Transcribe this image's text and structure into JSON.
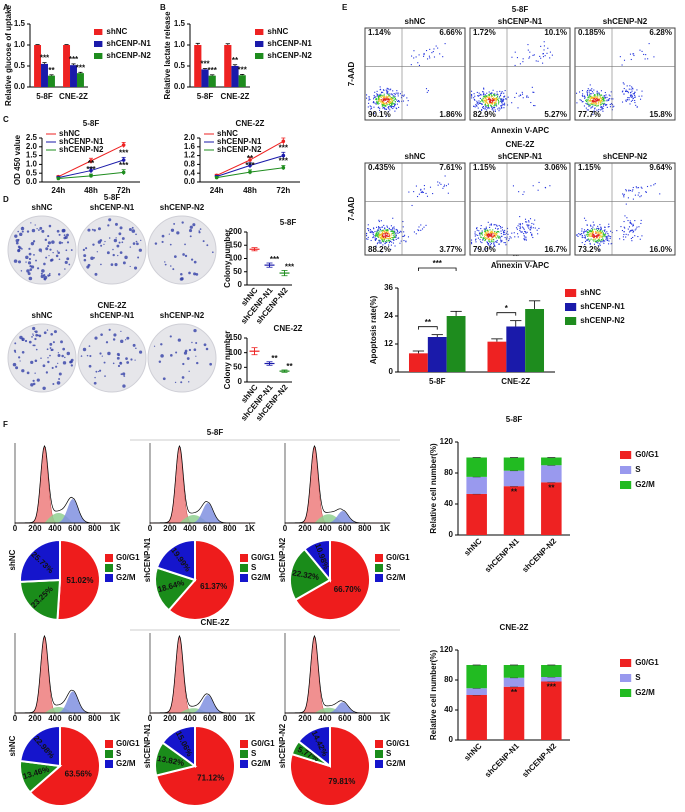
{
  "panel_labels": [
    "A",
    "B",
    "C",
    "D",
    "E",
    "F"
  ],
  "chart_data": [
    {
      "type": "bar",
      "y_label": "Relative glucose of uptake",
      "categories": [
        "5-8F",
        "CNE-2Z"
      ],
      "ylim": [
        0,
        1.5
      ],
      "yticks": [
        {
          "value": 0,
          "label": "0.0"
        },
        0.5,
        {
          "value": 1,
          "label": "1.0"
        },
        1.5
      ],
      "series": [
        {
          "name": "shNC",
          "color": "#ee2222",
          "values": [
            1,
            1
          ],
          "errors": [
            0.01,
            0.01
          ]
        },
        {
          "name": "shCENP-N1",
          "color": "#1a1aaa",
          "values": [
            0.55,
            0.52
          ],
          "errors": [
            0.03,
            0.03
          ],
          "sig": [
            "***",
            "***"
          ]
        },
        {
          "name": "shCENP-N2",
          "color": "#1e8c1e",
          "values": [
            0.27,
            0.33
          ],
          "errors": [
            0.02,
            0.02
          ],
          "sig": [
            "**",
            "***"
          ]
        }
      ]
    },
    {
      "type": "bar",
      "y_label": "Relative lactate release",
      "categories": [
        "5-8F",
        "CNE-2Z"
      ],
      "ylim": [
        0,
        1.5
      ],
      "yticks": [
        {
          "value": 0,
          "label": "0.0"
        },
        0.5,
        {
          "value": 1,
          "label": "1.0"
        },
        1.5
      ],
      "series": [
        {
          "name": "shNC",
          "color": "#ee2222",
          "values": [
            1,
            1
          ],
          "errors": [
            0.04,
            0.03
          ]
        },
        {
          "name": "shCENP-N1",
          "color": "#1a1aaa",
          "values": [
            0.42,
            0.5
          ],
          "errors": [
            0.02,
            0.03
          ],
          "sig": [
            "***",
            "**"
          ]
        },
        {
          "name": "shCENP-N2",
          "color": "#1e8c1e",
          "values": [
            0.27,
            0.28
          ],
          "errors": [
            0.02,
            0.02
          ],
          "sig": [
            "***",
            "***"
          ]
        }
      ]
    },
    {
      "type": "line",
      "title": "5-8F",
      "y_label": "OD 450 value",
      "categories": [
        "24h",
        "48h",
        "72h"
      ],
      "ylim": [
        0,
        2.5
      ],
      "yticks": [
        {
          "value": 0,
          "label": "0.0"
        },
        0.5,
        {
          "value": 1,
          "label": "1.0"
        },
        1.5,
        {
          "value": 2,
          "label": "2.0"
        },
        2.5
      ],
      "series": [
        {
          "name": "shNC",
          "color": "#ee2222",
          "values": [
            0.3,
            1.2,
            2.1
          ],
          "errors": [
            0.05,
            0.15,
            0.15
          ]
        },
        {
          "name": "shCENP-N1",
          "color": "#1a1aaa",
          "values": [
            0.25,
            0.65,
            1.25
          ],
          "errors": [
            0.05,
            0.15,
            0.15
          ],
          "sig": [
            null,
            "**",
            "***"
          ]
        },
        {
          "name": "shCENP-N2",
          "color": "#1e8c1e",
          "values": [
            0.2,
            0.35,
            0.55
          ],
          "errors": [
            0.05,
            0.1,
            0.15
          ],
          "sig": [
            null,
            "***",
            "***"
          ]
        }
      ]
    },
    {
      "type": "line",
      "title": "CNE-2Z",
      "categories": [
        "24h",
        "48h",
        "72h"
      ],
      "ylim": [
        0,
        2
      ],
      "yticks": [
        {
          "value": 0,
          "label": "0.0"
        },
        0.4,
        0.8,
        1.2,
        1.6,
        {
          "value": 2,
          "label": "2.0"
        }
      ],
      "series": [
        {
          "name": "shNC",
          "color": "#ee2222",
          "values": [
            0.3,
            1.0,
            1.85
          ],
          "errors": [
            0.05,
            0.12,
            0.15
          ]
        },
        {
          "name": "shCENP-N1",
          "color": "#1a1aaa",
          "values": [
            0.25,
            0.75,
            1.2
          ],
          "errors": [
            0.05,
            0.12,
            0.15
          ],
          "sig": [
            null,
            "**",
            "***"
          ]
        },
        {
          "name": "shCENP-N2",
          "color": "#1e8c1e",
          "values": [
            0.2,
            0.45,
            0.65
          ],
          "errors": [
            0.05,
            0.1,
            0.1
          ],
          "sig": [
            null,
            "***",
            "***"
          ]
        }
      ]
    },
    {
      "type": "dot",
      "title": "5-8F",
      "y_label": "Colony number",
      "categories": [
        "shNC",
        "shCENP-N1",
        "shCENP-N2"
      ],
      "values": [
        135,
        75,
        45
      ],
      "errors": [
        6,
        8,
        10
      ],
      "colors": [
        "#ee2222",
        "#1a1aaa",
        "#1e8c1e"
      ],
      "sig": [
        null,
        "***",
        "***"
      ],
      "ylim": [
        0,
        200
      ],
      "yticks": [
        0,
        50,
        100,
        150,
        200
      ]
    },
    {
      "type": "dot",
      "title": "CNE-2Z",
      "y_label": "Colony number",
      "categories": [
        "shNC",
        "shCENP-N1",
        "shCENP-N2"
      ],
      "values": [
        105,
        63,
        37
      ],
      "errors": [
        12,
        6,
        4
      ],
      "colors": [
        "#ee2222",
        "#1a1aaa",
        "#1e8c1e"
      ],
      "sig": [
        null,
        "**",
        "**"
      ],
      "ylim": [
        0,
        150
      ],
      "yticks": [
        0,
        50,
        100,
        150
      ]
    },
    {
      "type": "bar",
      "y_label": "Apoptosis rate(%)",
      "categories": [
        "5-8F",
        "CNE-2Z"
      ],
      "ylim": [
        0,
        36
      ],
      "yticks": [
        0,
        12,
        24,
        36
      ],
      "annotations": [
        "**",
        "***",
        "*",
        "**"
      ],
      "series": [
        {
          "name": "shNC",
          "color": "#ee2222",
          "values": [
            8,
            13
          ],
          "errors": [
            1,
            1.2
          ]
        },
        {
          "name": "shCENP-N1",
          "color": "#1a1aaa",
          "values": [
            15,
            19.5
          ],
          "errors": [
            1,
            2.5
          ]
        },
        {
          "name": "shCENP-N2",
          "color": "#1e8c1e",
          "values": [
            24,
            27
          ],
          "errors": [
            2,
            3.5
          ]
        }
      ]
    },
    {
      "type": "pie",
      "title": "shNC",
      "categories": [
        "G0/G1",
        "S",
        "G2/M"
      ],
      "colors": [
        "#ee1c1c",
        "#1a8c1a",
        "#1515cc"
      ],
      "values": [
        51.02,
        23.25,
        25.73
      ],
      "value_labels": [
        "51.02%",
        "23.25%",
        "25.73%"
      ]
    },
    {
      "type": "pie",
      "title": "shCENP-N1",
      "categories": [
        "G0/G1",
        "S",
        "G2/M"
      ],
      "colors": [
        "#ee1c1c",
        "#1a8c1a",
        "#1515cc"
      ],
      "values": [
        61.37,
        18.64,
        19.99
      ],
      "value_labels": [
        "61.37%",
        "18.64%",
        "19.99%"
      ]
    },
    {
      "type": "pie",
      "title": "shCENP-N2",
      "categories": [
        "G0/G1",
        "S",
        "G2/M"
      ],
      "colors": [
        "#ee1c1c",
        "#1a8c1a",
        "#1515cc"
      ],
      "values": [
        66.7,
        22.32,
        10.98
      ],
      "value_labels": [
        "66.70%",
        "22.32%",
        "10.98%"
      ]
    },
    {
      "type": "pie",
      "title": "shNC",
      "categories": [
        "G0/G1",
        "S",
        "G2/M"
      ],
      "colors": [
        "#ee1c1c",
        "#1a8c1a",
        "#1515cc"
      ],
      "values": [
        63.56,
        13.46,
        22.98
      ],
      "value_labels": [
        "63.56%",
        "13.46%",
        "22.98%"
      ]
    },
    {
      "type": "pie",
      "title": "shCENP-N1",
      "categories": [
        "G0/G1",
        "S",
        "G2/M"
      ],
      "colors": [
        "#ee1c1c",
        "#1a8c1a",
        "#1515cc"
      ],
      "values": [
        71.12,
        13.82,
        15.06
      ],
      "value_labels": [
        "71.12%",
        "13.82%",
        "15.06%"
      ]
    },
    {
      "type": "pie",
      "title": "shCENP-N2",
      "categories": [
        "G0/G1",
        "S",
        "G2/M"
      ],
      "colors": [
        "#ee1c1c",
        "#1a8c1a",
        "#1515cc"
      ],
      "values": [
        79.81,
        5.77,
        14.42
      ],
      "value_labels": [
        "79.81%",
        "5.77%",
        "14.42%"
      ]
    },
    {
      "type": "stacked_bar",
      "title": "5-8F",
      "y_label": "Relative cell number(%)",
      "categories": [
        "shNC",
        "shCENP-N1",
        "shCENP-N2"
      ],
      "ylim": [
        0,
        120
      ],
      "yticks": [
        0,
        40,
        80,
        120
      ],
      "series": [
        {
          "name": "G0/G1",
          "color": "#ee2222",
          "values": [
            53,
            63,
            68
          ],
          "sig": [
            null,
            "**",
            "**"
          ]
        },
        {
          "name": "S",
          "color": "#9999ee",
          "values": [
            22,
            20,
            22
          ]
        },
        {
          "name": "G2/M",
          "color": "#22bb22",
          "values": [
            25,
            17,
            10
          ]
        }
      ]
    },
    {
      "type": "stacked_bar",
      "title": "CNE-2Z",
      "y_label": "Relative cell number(%)",
      "categories": [
        "shNC",
        "shCENP-N1",
        "shCENP-N2"
      ],
      "ylim": [
        0,
        120
      ],
      "yticks": [
        0,
        40,
        80,
        120
      ],
      "series": [
        {
          "name": "G0/G1",
          "color": "#ee2222",
          "values": [
            60,
            71,
            78
          ],
          "sig": [
            null,
            "**",
            "***"
          ]
        },
        {
          "name": "S",
          "color": "#9999ee",
          "values": [
            9,
            12,
            6
          ]
        },
        {
          "name": "G2/M",
          "color": "#22bb22",
          "values": [
            31,
            17,
            16
          ]
        }
      ]
    }
  ],
  "colony": {
    "titles": [
      "5-8F",
      "CNE-2Z"
    ],
    "groups": [
      "shNC",
      "shCENP-N1",
      "shCENP-N2"
    ]
  },
  "flow": {
    "titles": [
      "5-8F",
      "CNE-2Z"
    ],
    "groups": [
      "shNC",
      "shCENP-N1",
      "shCENP-N2"
    ],
    "y_label": "7-AAD",
    "x_label": "Annexin V-APC",
    "quadrants": [
      [
        [
          "1.14%",
          "6.66%",
          "90.1%",
          "1.86%"
        ],
        [
          "1.72%",
          "10.1%",
          "82.9%",
          "5.27%"
        ],
        [
          "0.185%",
          "6.28%",
          "77.7%",
          "15.8%"
        ]
      ],
      [
        [
          "0.435%",
          "7.61%",
          "88.2%",
          "3.77%"
        ],
        [
          "1.15%",
          "3.06%",
          "79.0%",
          "16.7%"
        ],
        [
          "1.15%",
          "9.64%",
          "73.2%",
          "16.0%"
        ]
      ]
    ]
  },
  "cell_cycle": {
    "titles": [
      "5-8F",
      "CNE-2Z"
    ],
    "hist_ticks": [
      0,
      200,
      400,
      600,
      800,
      {
        "value": 1000,
        "label": "1K"
      }
    ]
  }
}
